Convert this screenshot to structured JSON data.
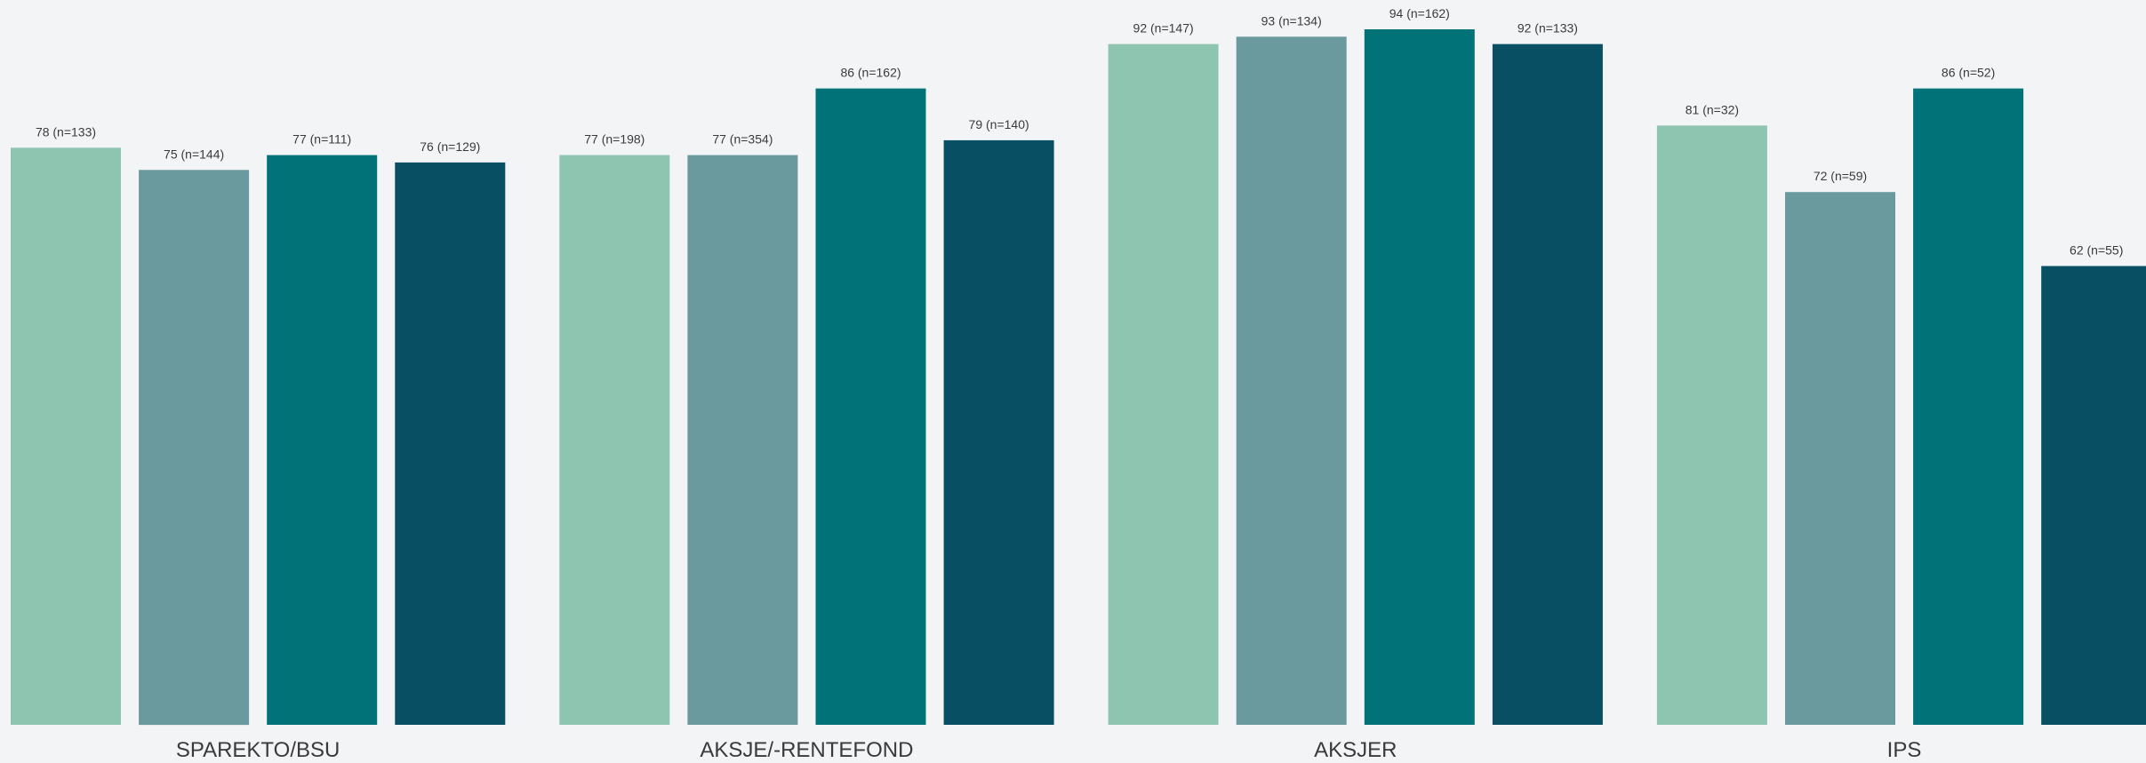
{
  "chart_data": {
    "type": "bar",
    "title": "",
    "xlabel": "",
    "ylabel": "",
    "ylim": [
      0,
      100
    ],
    "grid": false,
    "legend": "none",
    "categories": [
      "SPAREKTO/BSU",
      "AKSJE/-RENTEFOND",
      "AKSJER",
      "IPS"
    ],
    "series": [
      {
        "color": "#8dc5b1",
        "values": [
          78,
          77,
          92,
          81
        ],
        "labels": [
          "78 (n=133)",
          "77 (n=198)",
          "92 (n=147)",
          "81 (n=32)"
        ]
      },
      {
        "color": "#6a9a9d",
        "values": [
          75,
          77,
          93,
          72
        ],
        "labels": [
          "75 (n=144)",
          "77 (n=354)",
          "93 (n=134)",
          "72 (n=59)"
        ]
      },
      {
        "color": "#017378",
        "values": [
          77,
          86,
          94,
          86
        ],
        "labels": [
          "77 (n=111)",
          "86 (n=162)",
          "94 (n=162)",
          "86 (n=52)"
        ]
      },
      {
        "color": "#084f63",
        "values": [
          76,
          79,
          92,
          62
        ],
        "labels": [
          "76 (n=129)",
          "79 (n=140)",
          "92 (n=133)",
          "62 (n=55)"
        ]
      }
    ]
  }
}
